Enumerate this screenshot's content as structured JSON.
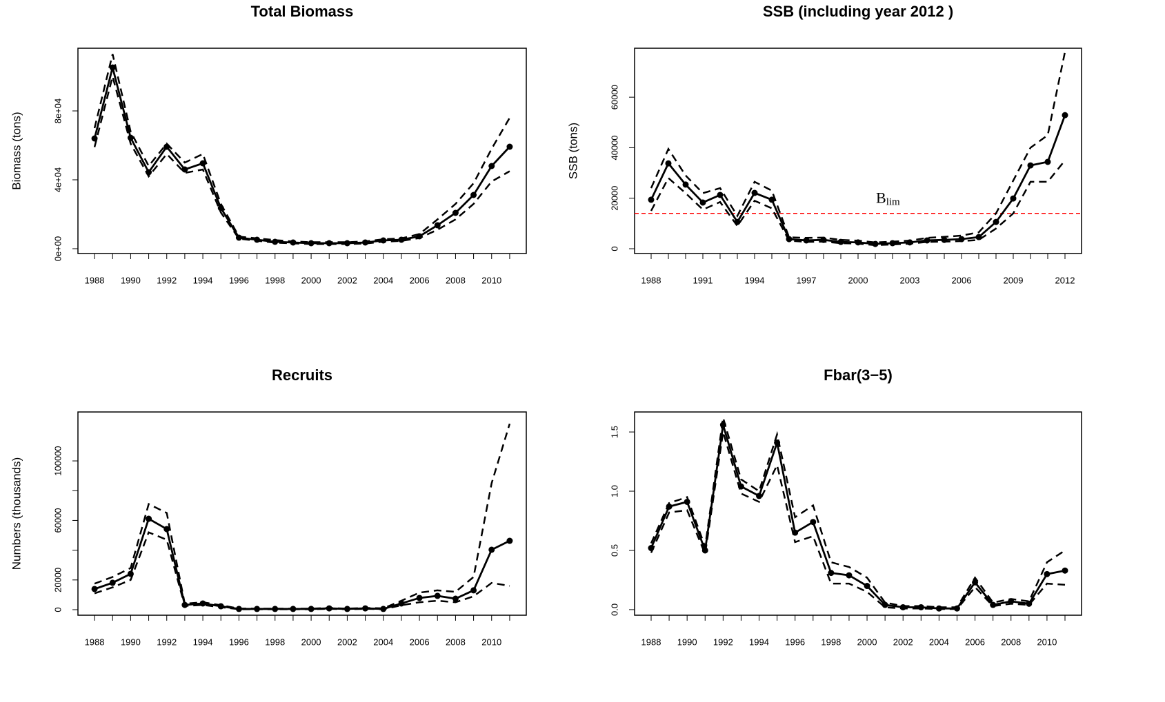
{
  "chart_data": [
    {
      "type": "line",
      "title": "Total Biomass",
      "y_label": "Biomass (tons)",
      "categories": [
        "1988",
        null,
        "1990",
        null,
        "1992",
        null,
        "1994",
        null,
        "1996",
        null,
        "1998",
        null,
        "2000",
        null,
        "2002",
        null,
        "2004",
        null,
        "2006",
        null,
        "2008",
        null,
        "2010",
        null
      ],
      "series": [
        {
          "color": "#000000",
          "line": "solid",
          "markers": true,
          "values": [
            64000,
            105200,
            64400,
            44400,
            59200,
            46000,
            49600,
            23600,
            6400,
            5200,
            4000,
            3600,
            3200,
            3200,
            3200,
            3600,
            4800,
            5200,
            7200,
            13600,
            20800,
            31200,
            48000,
            59200
          ]
        },
        {
          "color": "#000000",
          "line": "dashed",
          "markers": false,
          "values": [
            70000,
            113000,
            68000,
            48000,
            61000,
            50000,
            55000,
            26000,
            7000,
            6000,
            5000,
            4200,
            3800,
            3800,
            3800,
            4200,
            5500,
            6000,
            8500,
            17000,
            26000,
            38000,
            58000,
            76000
          ]
        },
        {
          "color": "#000000",
          "line": "dashed",
          "markers": false,
          "values": [
            59000,
            100000,
            61000,
            42000,
            55000,
            44000,
            46000,
            21000,
            5800,
            4600,
            3500,
            3100,
            2700,
            2700,
            2700,
            3000,
            4100,
            4500,
            6200,
            11000,
            17000,
            26000,
            39000,
            45000
          ]
        }
      ],
      "ylim": [
        -2800,
        116400
      ],
      "yticks": [
        {
          "value": 0,
          "label": "0e+00"
        },
        {
          "value": 40000,
          "label": "4e+04"
        },
        {
          "value": 80000,
          "label": "8e+04"
        }
      ]
    },
    {
      "type": "line",
      "title": "SSB (including year 2012 )",
      "y_label": "SSB (tons)",
      "categories": [
        "1988",
        null,
        null,
        "1991",
        null,
        null,
        "1994",
        null,
        null,
        "1997",
        null,
        null,
        "2000",
        null,
        null,
        "2003",
        null,
        null,
        "2006",
        null,
        null,
        "2009",
        null,
        null,
        "2012"
      ],
      "series": [
        {
          "color": "#000000",
          "line": "solid",
          "markers": true,
          "values": [
            19400,
            33800,
            25400,
            18300,
            21300,
            10600,
            22100,
            19400,
            3800,
            3300,
            3500,
            2700,
            2500,
            1900,
            2200,
            2500,
            3300,
            3500,
            3800,
            4600,
            10600,
            19900,
            33000,
            34400,
            52900
          ]
        },
        {
          "color": "#000000",
          "line": "dashed",
          "markers": false,
          "values": [
            24000,
            39500,
            29000,
            22000,
            24000,
            13000,
            26500,
            23000,
            4500,
            4300,
            4400,
            3500,
            3200,
            2500,
            2800,
            3200,
            4300,
            4700,
            5200,
            6500,
            14000,
            27000,
            40000,
            45000,
            78000
          ]
        },
        {
          "color": "#000000",
          "line": "dashed",
          "markers": false,
          "values": [
            15000,
            28000,
            22000,
            15500,
            18500,
            9000,
            19000,
            16000,
            3200,
            2700,
            2800,
            2200,
            2000,
            1400,
            1700,
            2000,
            2700,
            2800,
            3000,
            3500,
            8000,
            14000,
            26500,
            26500,
            35000
          ]
        }
      ],
      "ylim": [
        -1900,
        79400
      ],
      "yticks": [
        0,
        20000,
        40000,
        60000
      ],
      "reference_line": {
        "value": 14000,
        "color": "#ff0000",
        "text": "B",
        "subscript": "lim"
      }
    },
    {
      "type": "line",
      "title": "Recruits",
      "y_label": "Numbers (thousands)",
      "categories": [
        "1988",
        null,
        "1990",
        null,
        "1992",
        null,
        "1994",
        null,
        "1996",
        null,
        "1998",
        null,
        "2000",
        null,
        "2002",
        null,
        "2004",
        null,
        "2006",
        null,
        "2008",
        null,
        "2010",
        null
      ],
      "series": [
        {
          "color": "#000000",
          "line": "solid",
          "markers": true,
          "values": [
            13900,
            18100,
            24100,
            61100,
            54200,
            3200,
            4200,
            2300,
            500,
            500,
            500,
            500,
            500,
            900,
            500,
            900,
            500,
            4200,
            7900,
            9300,
            7400,
            13000,
            40300,
            46300
          ]
        },
        {
          "color": "#000000",
          "line": "dashed",
          "markers": false,
          "values": [
            17500,
            22000,
            28000,
            71000,
            65000,
            4000,
            5000,
            3000,
            800,
            700,
            700,
            700,
            700,
            1200,
            700,
            1200,
            900,
            6000,
            11500,
            13000,
            12000,
            22000,
            85000,
            125000
          ]
        },
        {
          "color": "#000000",
          "line": "dashed",
          "markers": false,
          "values": [
            11000,
            15000,
            20000,
            52000,
            47000,
            2500,
            3200,
            1700,
            300,
            300,
            300,
            300,
            300,
            600,
            300,
            600,
            300,
            3000,
            5000,
            6000,
            5000,
            9000,
            18000,
            16000
          ]
        }
      ],
      "ylim": [
        -3700,
        132900
      ],
      "yticks": [
        0,
        20000,
        {
          "value": 40000,
          "label": null
        },
        60000,
        {
          "value": 80000,
          "label": null
        },
        100000
      ]
    },
    {
      "type": "line",
      "title": "Fbar(3−5)",
      "categories": [
        "1988",
        null,
        "1990",
        null,
        "1992",
        null,
        "1994",
        null,
        "1996",
        null,
        "1998",
        null,
        "2000",
        null,
        "2002",
        null,
        "2004",
        null,
        "2006",
        null,
        "2008",
        null,
        "2010",
        null
      ],
      "series": [
        {
          "color": "#000000",
          "line": "solid",
          "markers": true,
          "values": [
            0.52,
            0.87,
            0.91,
            0.5,
            1.56,
            1.04,
            0.96,
            1.41,
            0.65,
            0.74,
            0.31,
            0.29,
            0.2,
            0.04,
            0.02,
            0.02,
            0.01,
            0.01,
            0.23,
            0.04,
            0.07,
            0.05,
            0.3,
            0.33
          ]
        },
        {
          "color": "#000000",
          "line": "dashed",
          "markers": false,
          "values": [
            0.56,
            0.9,
            0.95,
            0.53,
            1.62,
            1.1,
            1.0,
            1.48,
            0.78,
            0.88,
            0.4,
            0.36,
            0.27,
            0.06,
            0.03,
            0.03,
            0.02,
            0.02,
            0.27,
            0.06,
            0.09,
            0.07,
            0.4,
            0.5
          ]
        },
        {
          "color": "#000000",
          "line": "dashed",
          "markers": false,
          "values": [
            0.48,
            0.82,
            0.84,
            0.47,
            1.5,
            0.98,
            0.91,
            1.22,
            0.57,
            0.62,
            0.22,
            0.22,
            0.15,
            0.02,
            0.01,
            0.01,
            0.005,
            0.005,
            0.19,
            0.03,
            0.05,
            0.04,
            0.22,
            0.21
          ]
        }
      ],
      "ylim": [
        -0.047,
        1.669
      ],
      "yticks": [
        {
          "value": 0,
          "label": "0.0"
        },
        {
          "value": 0.5,
          "label": "0.5"
        },
        {
          "value": 1,
          "label": "1.0"
        },
        {
          "value": 1.5,
          "label": "1.5"
        }
      ]
    }
  ]
}
